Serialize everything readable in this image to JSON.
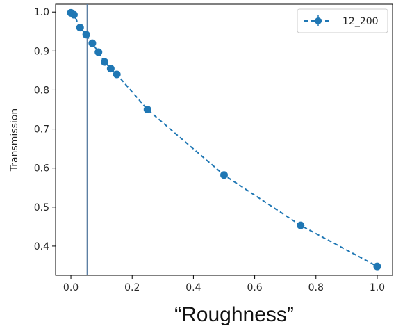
{
  "chart_data": {
    "type": "line",
    "xlabel": "“Roughness”",
    "ylabel": "Transmission",
    "xlim": [
      -0.05,
      1.05
    ],
    "ylim": [
      0.325,
      1.02
    ],
    "x_ticks": [
      "0.0",
      "0.2",
      "0.4",
      "0.6",
      "0.8",
      "1.0"
    ],
    "y_ticks": [
      "0.4",
      "0.5",
      "0.6",
      "0.7",
      "0.8",
      "0.9",
      "1.0"
    ],
    "legend_position": "top-right",
    "grid": false,
    "reference_line_x": 0.053,
    "series": [
      {
        "name": "12_200",
        "color": "#1f77b4",
        "marker": "circle",
        "line_style": "dashed",
        "x": [
          0.0,
          0.01,
          0.03,
          0.05,
          0.07,
          0.09,
          0.11,
          0.13,
          0.15,
          0.25,
          0.5,
          0.75,
          1.0
        ],
        "y": [
          0.998,
          0.993,
          0.96,
          0.942,
          0.92,
          0.897,
          0.872,
          0.855,
          0.84,
          0.75,
          0.582,
          0.453,
          0.348
        ]
      }
    ]
  }
}
